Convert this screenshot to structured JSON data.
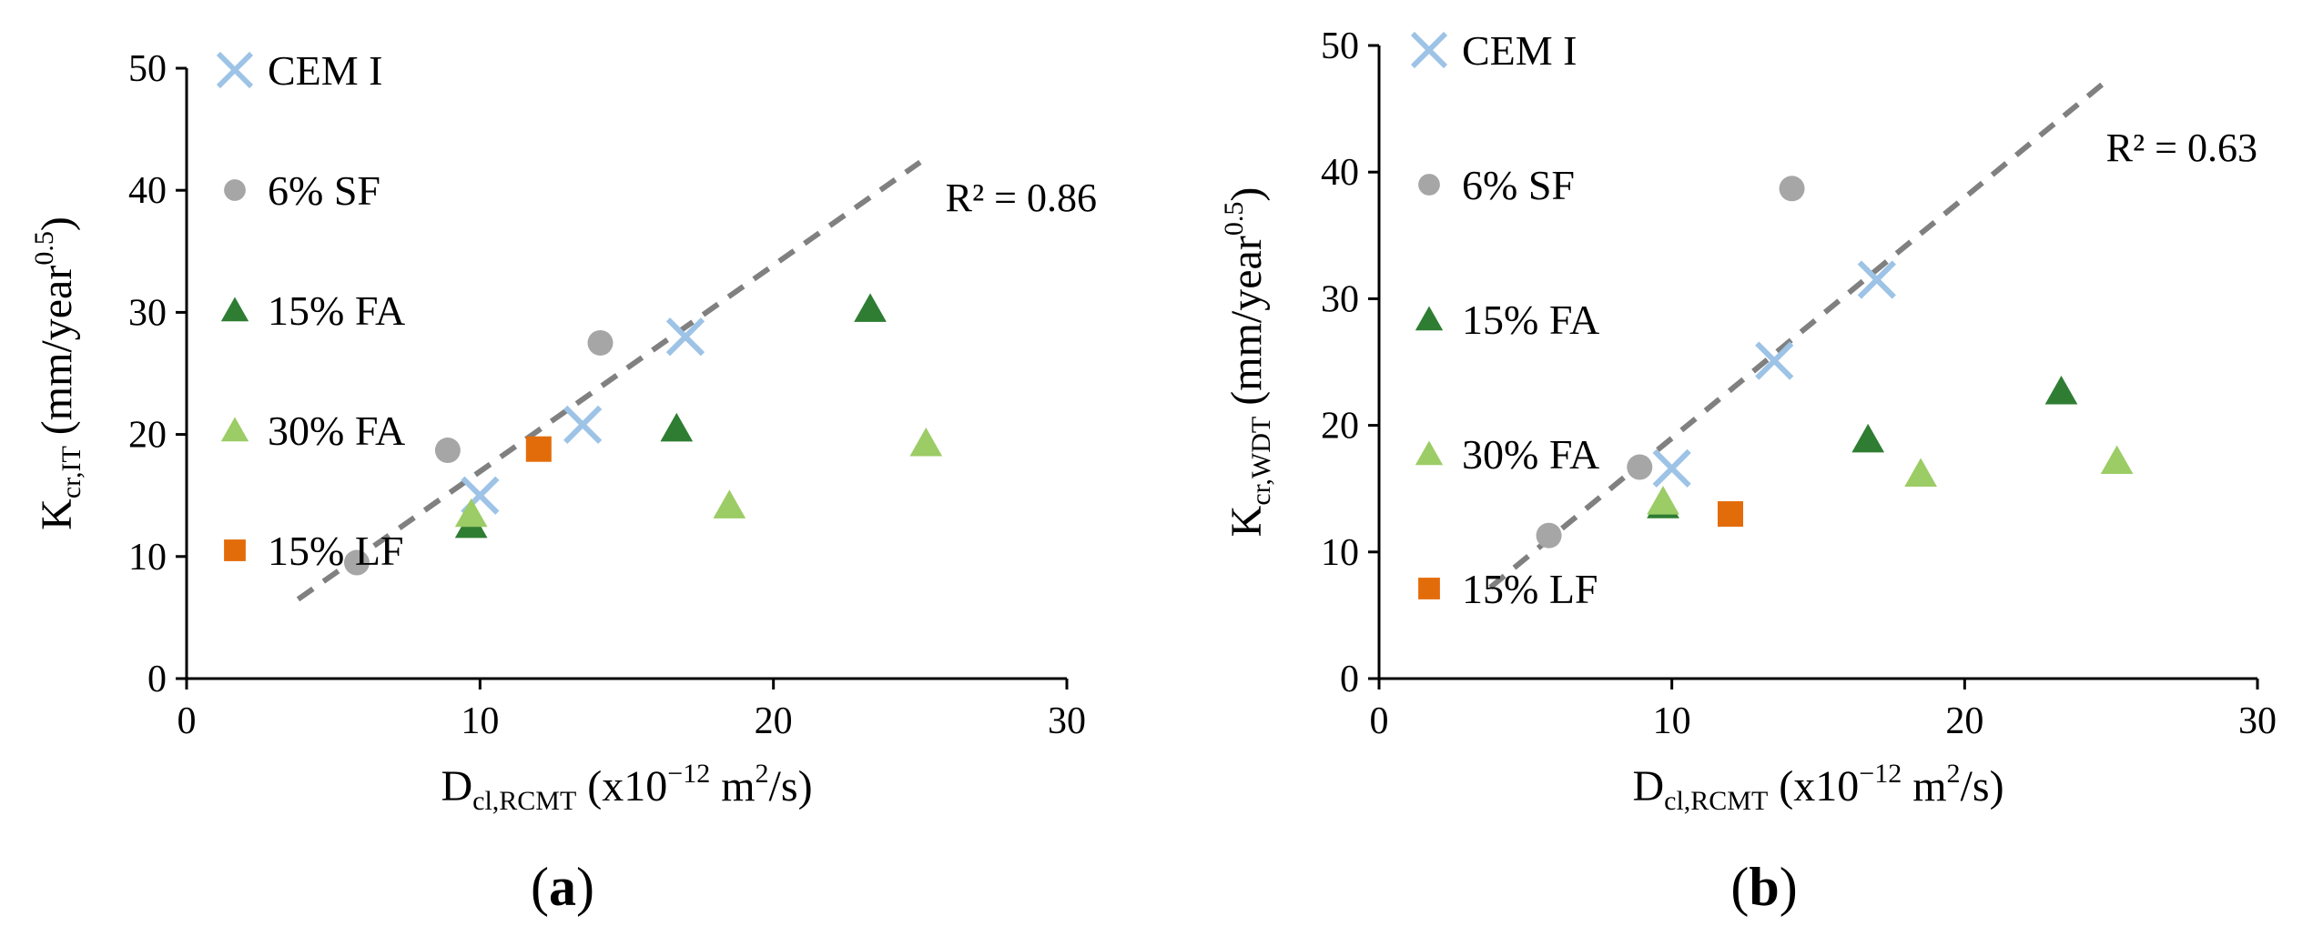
{
  "chart_data": [
    {
      "panel": "a",
      "type": "scatter",
      "xlabel": {
        "main": "D",
        "sub": "cl,RCMT",
        "rest": " (x10",
        "exp": "−12",
        "unit": " m",
        "unit_exp": "2",
        "tail": "/s)"
      },
      "ylabel": {
        "main": "K",
        "sub": "cr,IT",
        "rest": " (mm/year",
        "exp": "0.5",
        "tail": ")"
      },
      "xlim": [
        0,
        30
      ],
      "ylim": [
        0,
        50
      ],
      "xticks": [
        "0",
        "10",
        "20",
        "30"
      ],
      "xtick_values": [
        0,
        10,
        20,
        30
      ],
      "yticks": [
        "0",
        "10",
        "20",
        "30",
        "40",
        "50"
      ],
      "ytick_values": [
        0,
        10,
        20,
        30,
        40,
        50
      ],
      "legend_position": "top-left",
      "series": [
        {
          "name": "CEM I",
          "marker": "x",
          "color": "#9dc3e6",
          "points": [
            [
              10.0,
              15.0
            ],
            [
              13.5,
              20.8
            ],
            [
              17.0,
              28.0
            ]
          ]
        },
        {
          "name": "6% SF",
          "marker": "circle",
          "color": "#a6a6a6",
          "points": [
            [
              5.8,
              9.5
            ],
            [
              8.9,
              18.7
            ],
            [
              14.1,
              27.5
            ]
          ]
        },
        {
          "name": "15% FA",
          "marker": "triangle",
          "color": "#2e7d32",
          "points": [
            [
              9.7,
              12.6
            ],
            [
              16.7,
              20.5
            ],
            [
              23.3,
              30.3
            ]
          ]
        },
        {
          "name": "30% FA",
          "marker": "triangle",
          "color": "#9ccc65",
          "points": [
            [
              9.7,
              13.5
            ],
            [
              18.5,
              14.2
            ],
            [
              25.2,
              19.3
            ]
          ]
        },
        {
          "name": "15% LF",
          "marker": "square",
          "color": "#e36c0a",
          "points": [
            [
              12.0,
              18.8
            ]
          ]
        }
      ],
      "trendline": {
        "x": [
          3.8,
          25.0
        ],
        "y": [
          6.5,
          42.3
        ],
        "style": "dashed",
        "color": "#808080"
      },
      "annotation": "R² = 0.86"
    },
    {
      "panel": "b",
      "type": "scatter",
      "xlabel": {
        "main": "D",
        "sub": "cl,RCMT",
        "rest": " (x10",
        "exp": "−12",
        "unit": " m",
        "unit_exp": "2",
        "tail": "/s)"
      },
      "ylabel": {
        "main": "K",
        "sub": "cr,WDT",
        "rest": " (mm/year",
        "exp": "0.5",
        "tail": ")"
      },
      "xlim": [
        0,
        30
      ],
      "ylim": [
        0,
        50
      ],
      "xticks": [
        "0",
        "10",
        "20",
        "30"
      ],
      "xtick_values": [
        0,
        10,
        20,
        30
      ],
      "yticks": [
        "0",
        "10",
        "20",
        "30",
        "40",
        "50"
      ],
      "ytick_values": [
        0,
        10,
        20,
        30,
        40,
        50
      ],
      "legend_position": "top-left",
      "series": [
        {
          "name": "CEM I",
          "marker": "x",
          "color": "#9dc3e6",
          "points": [
            [
              10.0,
              16.6
            ],
            [
              13.5,
              25.1
            ],
            [
              17.0,
              31.5
            ]
          ]
        },
        {
          "name": "6% SF",
          "marker": "circle",
          "color": "#a6a6a6",
          "points": [
            [
              5.8,
              11.3
            ],
            [
              8.9,
              16.7
            ],
            [
              14.1,
              38.7
            ]
          ]
        },
        {
          "name": "15% FA",
          "marker": "triangle",
          "color": "#2e7d32",
          "points": [
            [
              9.7,
              13.7
            ],
            [
              16.7,
              18.9
            ],
            [
              23.3,
              22.7
            ]
          ]
        },
        {
          "name": "30% FA",
          "marker": "triangle",
          "color": "#9ccc65",
          "points": [
            [
              9.7,
              14.0
            ],
            [
              18.5,
              16.2
            ],
            [
              25.2,
              17.2
            ]
          ]
        },
        {
          "name": "15% LF",
          "marker": "square",
          "color": "#e36c0a",
          "points": [
            [
              12.0,
              13.0
            ]
          ]
        }
      ],
      "trendline": {
        "x": [
          3.8,
          25.0
        ],
        "y": [
          7.2,
          47.5
        ],
        "style": "dashed",
        "color": "#808080"
      },
      "annotation": "R² = 0.63"
    }
  ],
  "panel_labels": [
    {
      "open": "(",
      "letter": "a",
      "close": ")"
    },
    {
      "open": "(",
      "letter": "b",
      "close": ")"
    }
  ]
}
